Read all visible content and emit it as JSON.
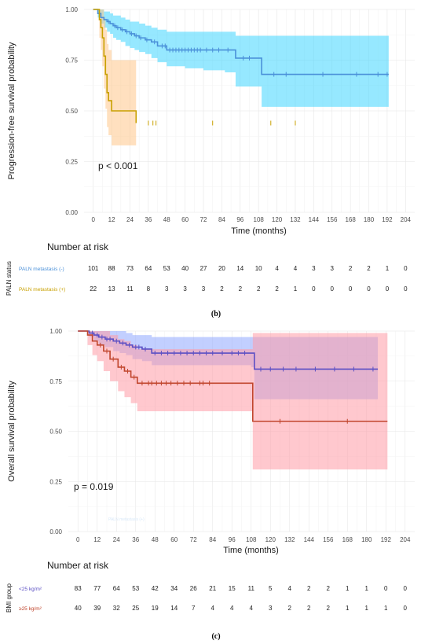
{
  "chart_data": [
    {
      "type": "line",
      "subtype": "kaplan-meier",
      "panel_label": "",
      "title": "",
      "xlabel": "Time (months)",
      "ylabel": "Progression-free survival probability",
      "xlim": [
        -6,
        210
      ],
      "ylim": [
        0,
        1
      ],
      "x_ticks": [
        0,
        12,
        24,
        36,
        48,
        60,
        72,
        84,
        96,
        108,
        120,
        132,
        144,
        156,
        168,
        180,
        192,
        204
      ],
      "y_ticks": [
        0.0,
        0.25,
        0.5,
        0.75,
        1.0
      ],
      "y_tick_labels": [
        "0.00",
        "0.25",
        "0.50",
        "0.75",
        "1.00"
      ],
      "grid": true,
      "annotation": "p < 0.001",
      "series": [
        {
          "name": "PALN metastasis (-)",
          "color": "#4a90d9",
          "ci_color": "#3fd6ff",
          "x": [
            0,
            3,
            5,
            7,
            9,
            11,
            13,
            15,
            18,
            21,
            24,
            27,
            30,
            34,
            38,
            42,
            48,
            60,
            72,
            86,
            93,
            96,
            108,
            110,
            124,
            144,
            156,
            168,
            180,
            193
          ],
          "y": [
            1.0,
            0.98,
            0.96,
            0.95,
            0.94,
            0.93,
            0.92,
            0.91,
            0.9,
            0.89,
            0.88,
            0.87,
            0.86,
            0.85,
            0.84,
            0.82,
            0.8,
            0.8,
            0.8,
            0.8,
            0.76,
            0.76,
            0.76,
            0.68,
            0.68,
            0.68,
            0.68,
            0.68,
            0.68,
            0.68
          ],
          "ci_low": [
            1.0,
            0.96,
            0.93,
            0.91,
            0.89,
            0.88,
            0.86,
            0.85,
            0.84,
            0.82,
            0.81,
            0.8,
            0.79,
            0.78,
            0.76,
            0.74,
            0.72,
            0.71,
            0.7,
            0.69,
            0.62,
            0.62,
            0.62,
            0.52,
            0.52,
            0.52,
            0.52,
            0.52,
            0.52,
            0.52
          ],
          "ci_high": [
            1.0,
            1.0,
            1.0,
            0.99,
            0.99,
            0.98,
            0.97,
            0.97,
            0.96,
            0.95,
            0.94,
            0.94,
            0.93,
            0.92,
            0.91,
            0.9,
            0.89,
            0.89,
            0.89,
            0.89,
            0.87,
            0.87,
            0.87,
            0.87,
            0.87,
            0.87,
            0.87,
            0.87,
            0.87,
            0.87
          ],
          "censor_x": [
            10,
            14,
            16,
            19,
            22,
            25,
            28,
            31,
            35,
            40,
            45,
            47,
            50,
            52,
            54,
            56,
            58,
            60,
            62,
            64,
            66,
            68,
            70,
            74,
            78,
            82,
            88,
            98,
            102,
            118,
            126,
            150,
            172,
            186,
            192
          ]
        },
        {
          "name": "PALN metastasis (+)",
          "color": "#c8a000",
          "ci_color": "#ffc68a",
          "x": [
            0,
            4,
            5,
            6,
            7,
            8,
            9,
            10,
            11,
            12,
            28
          ],
          "y": [
            1.0,
            0.95,
            0.91,
            0.86,
            0.77,
            0.68,
            0.59,
            0.55,
            0.55,
            0.5,
            0.44
          ],
          "ci_low": [
            1.0,
            0.86,
            0.8,
            0.72,
            0.61,
            0.51,
            0.42,
            0.38,
            0.38,
            0.33,
            0.27
          ],
          "ci_high": [
            1.0,
            1.0,
            1.0,
            1.0,
            0.96,
            0.9,
            0.83,
            0.8,
            0.8,
            0.75,
            0.7
          ],
          "censor_x": [
            36,
            39,
            41,
            78,
            116,
            132
          ]
        }
      ],
      "risk_table": {
        "title": "Number at risk",
        "ylabel": "PALN status",
        "times": [
          0,
          12,
          24,
          36,
          48,
          60,
          72,
          84,
          96,
          108,
          120,
          132,
          144,
          156,
          168,
          180,
          192,
          204
        ],
        "rows": [
          {
            "label": "PALN metastasis (-)",
            "values": [
              "101",
              "88",
              "73",
              "64",
              "53",
              "40",
              "27",
              "20",
              "14",
              "10",
              "4",
              "4",
              "3",
              "3",
              "2",
              "2",
              "1",
              "0"
            ]
          },
          {
            "label": "PALN metastasis (+)",
            "values": [
              "22",
              "13",
              "11",
              "8",
              "3",
              "3",
              "3",
              "2",
              "2",
              "2",
              "2",
              "1",
              "0",
              "0",
              "0",
              "0",
              "0",
              "0"
            ]
          }
        ]
      }
    },
    {
      "type": "line",
      "subtype": "kaplan-meier",
      "panel_label": "(b)",
      "title": "",
      "xlabel": "Time (months)",
      "ylabel": "Overall survival probability",
      "xlim": [
        -6,
        210
      ],
      "ylim": [
        0,
        1
      ],
      "x_ticks": [
        0,
        12,
        24,
        36,
        48,
        60,
        72,
        84,
        96,
        108,
        120,
        132,
        144,
        156,
        168,
        180,
        192,
        204
      ],
      "y_ticks": [
        0.0,
        0.25,
        0.5,
        0.75,
        1.0
      ],
      "y_tick_labels": [
        "0.00",
        "0.25",
        "0.50",
        "0.75",
        "1.00"
      ],
      "grid": true,
      "annotation": "p = 0.019",
      "series": [
        {
          "name": "<25 kg/m²",
          "color": "#5b4fc4",
          "ci_color": "#8fa8ff",
          "x": [
            0,
            7,
            10,
            13,
            17,
            22,
            26,
            30,
            34,
            40,
            46,
            108,
            110,
            187
          ],
          "y": [
            1.0,
            0.99,
            0.98,
            0.97,
            0.96,
            0.95,
            0.94,
            0.93,
            0.92,
            0.91,
            0.89,
            0.89,
            0.81,
            0.81
          ],
          "ci_low": [
            1.0,
            0.97,
            0.95,
            0.93,
            0.92,
            0.9,
            0.89,
            0.88,
            0.86,
            0.85,
            0.83,
            0.82,
            0.66,
            0.66
          ],
          "ci_high": [
            1.0,
            1.0,
            1.0,
            1.0,
            1.0,
            1.0,
            1.0,
            0.99,
            0.98,
            0.98,
            0.97,
            0.97,
            0.97,
            0.97
          ],
          "censor_x": [
            9,
            12,
            15,
            18,
            20,
            24,
            28,
            32,
            36,
            38,
            42,
            48,
            52,
            56,
            60,
            64,
            68,
            72,
            76,
            80,
            84,
            90,
            96,
            100,
            104,
            114,
            120,
            128,
            136,
            148,
            160,
            172,
            184
          ]
        },
        {
          "name": "≥25 kg/m²",
          "color": "#c0452c",
          "ci_color": "#ff9aa6",
          "x": [
            0,
            6,
            9,
            12,
            16,
            20,
            25,
            29,
            33,
            37,
            108,
            109,
            193
          ],
          "y": [
            1.0,
            0.98,
            0.95,
            0.93,
            0.9,
            0.86,
            0.82,
            0.8,
            0.77,
            0.74,
            0.74,
            0.55,
            0.55
          ],
          "ci_low": [
            1.0,
            0.93,
            0.88,
            0.85,
            0.8,
            0.75,
            0.7,
            0.67,
            0.64,
            0.6,
            0.6,
            0.31,
            0.31
          ],
          "ci_high": [
            1.0,
            1.0,
            1.0,
            1.0,
            1.0,
            0.98,
            0.96,
            0.95,
            0.93,
            0.91,
            0.91,
            0.99,
            0.99
          ],
          "censor_x": [
            14,
            18,
            22,
            27,
            31,
            35,
            40,
            44,
            46,
            49,
            52,
            55,
            58,
            62,
            66,
            70,
            76,
            78,
            82,
            126,
            168
          ]
        }
      ],
      "risk_table": {
        "title": "Number at risk",
        "ylabel": "BMI group",
        "times": [
          0,
          12,
          24,
          36,
          48,
          60,
          72,
          84,
          96,
          108,
          120,
          132,
          144,
          156,
          168,
          180,
          192,
          204
        ],
        "rows": [
          {
            "label": "<25 kg/m²",
            "values": [
              "83",
              "77",
              "64",
              "53",
              "42",
              "34",
              "26",
              "21",
              "15",
              "11",
              "5",
              "4",
              "2",
              "2",
              "1",
              "1",
              "0",
              "0"
            ]
          },
          {
            "label": "≥25 kg/m²",
            "values": [
              "40",
              "39",
              "32",
              "25",
              "19",
              "14",
              "7",
              "4",
              "4",
              "4",
              "3",
              "2",
              "2",
              "2",
              "1",
              "1",
              "1",
              "0"
            ]
          }
        ]
      }
    }
  ],
  "footer_label": "(c)",
  "faded_text": "PALN metastasis (+)"
}
